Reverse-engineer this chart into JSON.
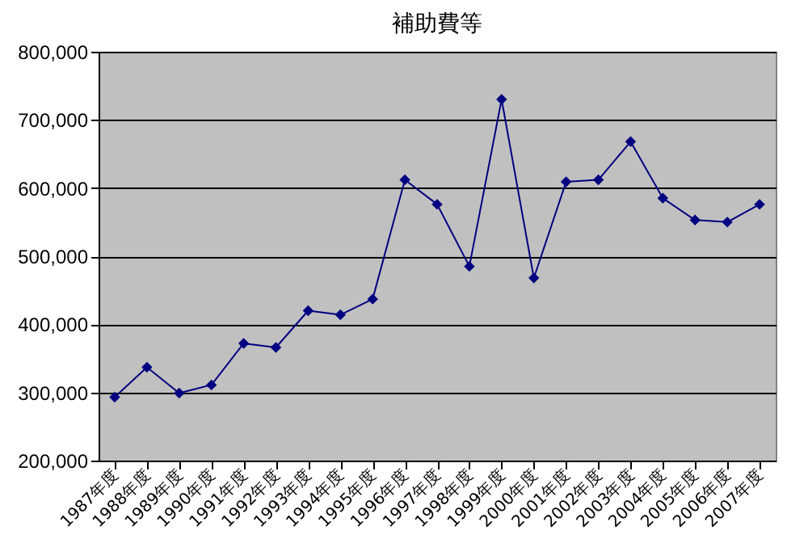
{
  "chart_data": {
    "type": "line",
    "title": "補助費等",
    "categories": [
      "1987年度",
      "1988年度",
      "1989年度",
      "1990年度",
      "1991年度",
      "1992年度",
      "1993年度",
      "1994年度",
      "1995年度",
      "1996年度",
      "1997年度",
      "1998年度",
      "1999年度",
      "2000年度",
      "2001年度",
      "2002年度",
      "2003年度",
      "2004年度",
      "2005年度",
      "2006年度",
      "2007年度"
    ],
    "series": [
      {
        "color": "#000080",
        "values": [
          293000,
          337000,
          299000,
          311000,
          372000,
          366000,
          420000,
          414000,
          437000,
          612000,
          576000,
          485000,
          730000,
          468000,
          609000,
          612000,
          668000,
          585000,
          553000,
          550000,
          576000
        ]
      }
    ],
    "ylim": [
      200000,
      800000
    ],
    "yticks": [
      {
        "value": 200000,
        "label": "200,000"
      },
      {
        "value": 300000,
        "label": "300,000"
      },
      {
        "value": 400000,
        "label": "400,000"
      },
      {
        "value": 500000,
        "label": "500,000"
      },
      {
        "value": 600000,
        "label": "600,000"
      },
      {
        "value": 700000,
        "label": "700,000"
      },
      {
        "value": 800000,
        "label": "800,000"
      }
    ],
    "grid": "y",
    "marker": "diamond",
    "line_style": "solid",
    "legend": false
  }
}
